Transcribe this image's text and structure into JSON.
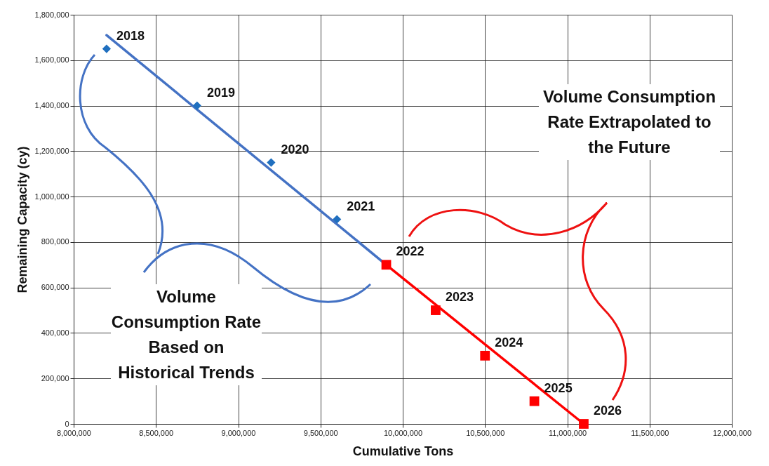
{
  "chart_data": {
    "type": "scatter",
    "xlabel": "Cumulative Tons",
    "ylabel": "Remaining Capacity (cy)",
    "xlim": [
      8000000,
      12000000
    ],
    "xticks": [
      {
        "value": 8000000,
        "label": "8,000,000"
      },
      {
        "value": 8500000,
        "label": "8,500,000"
      },
      {
        "value": 9000000,
        "label": "9,000,000"
      },
      {
        "value": 9500000,
        "label": "9,500,000"
      },
      {
        "value": 10000000,
        "label": "10,000,000"
      },
      {
        "value": 10500000,
        "label": "10,500,000"
      },
      {
        "value": 11000000,
        "label": "11,000,000"
      },
      {
        "value": 11500000,
        "label": "11,500,000"
      },
      {
        "value": 12000000,
        "label": "12,000,000"
      }
    ],
    "ylim": [
      0,
      1800000
    ],
    "yticks": [
      0,
      {
        "value": 200000,
        "label": "200,000"
      },
      {
        "value": 400000,
        "label": "400,000"
      },
      {
        "value": 600000,
        "label": "600,000"
      },
      {
        "value": 800000,
        "label": "800,000"
      },
      {
        "value": 1000000,
        "label": "1,000,000"
      },
      {
        "value": 1200000,
        "label": "1,200,000"
      },
      {
        "value": 1400000,
        "label": "1,400,000"
      },
      {
        "value": 1600000,
        "label": "1,600,000"
      },
      {
        "value": 1800000,
        "label": "1,800,000"
      }
    ],
    "grid": true,
    "series": [
      {
        "type": "line",
        "color": "#4472c4",
        "marker": "none",
        "x": [
          8200000,
          9900000
        ],
        "values": [
          1710000,
          700000
        ]
      },
      {
        "type": "line",
        "color": "#ff0000",
        "marker": "none",
        "x": [
          9900000,
          11100000
        ],
        "values": [
          700000,
          0
        ]
      },
      {
        "type": "scatter",
        "color": "#1f6fbf",
        "marker": "diamond",
        "x": [
          8200000,
          8750000,
          9200000,
          9600000
        ],
        "values": [
          1650000,
          1400000,
          1150000,
          900000
        ]
      },
      {
        "type": "scatter",
        "color": "#ff0000",
        "marker": "square",
        "x": [
          9900000,
          10200000,
          10500000,
          10800000,
          11100000
        ],
        "values": [
          700000,
          500000,
          300000,
          100000,
          0
        ]
      }
    ],
    "annotations": [
      {
        "text": "2018",
        "x": 8200000,
        "y": 1650000
      },
      {
        "text": "2019",
        "x": 8750000,
        "y": 1400000
      },
      {
        "text": "2020",
        "x": 9200000,
        "y": 1150000
      },
      {
        "text": "2021",
        "x": 9600000,
        "y": 900000
      },
      {
        "text": "2022",
        "x": 9900000,
        "y": 700000
      },
      {
        "text": "2023",
        "x": 10200000,
        "y": 500000
      },
      {
        "text": "2024",
        "x": 10500000,
        "y": 300000
      },
      {
        "text": "2025",
        "x": 10800000,
        "y": 100000
      },
      {
        "text": "2026",
        "x": 11100000,
        "y": 0
      },
      "Volume Consumption Rate Based on Historical Trends",
      "Volume Consumption Rate Extrapolated to the Future"
    ]
  }
}
